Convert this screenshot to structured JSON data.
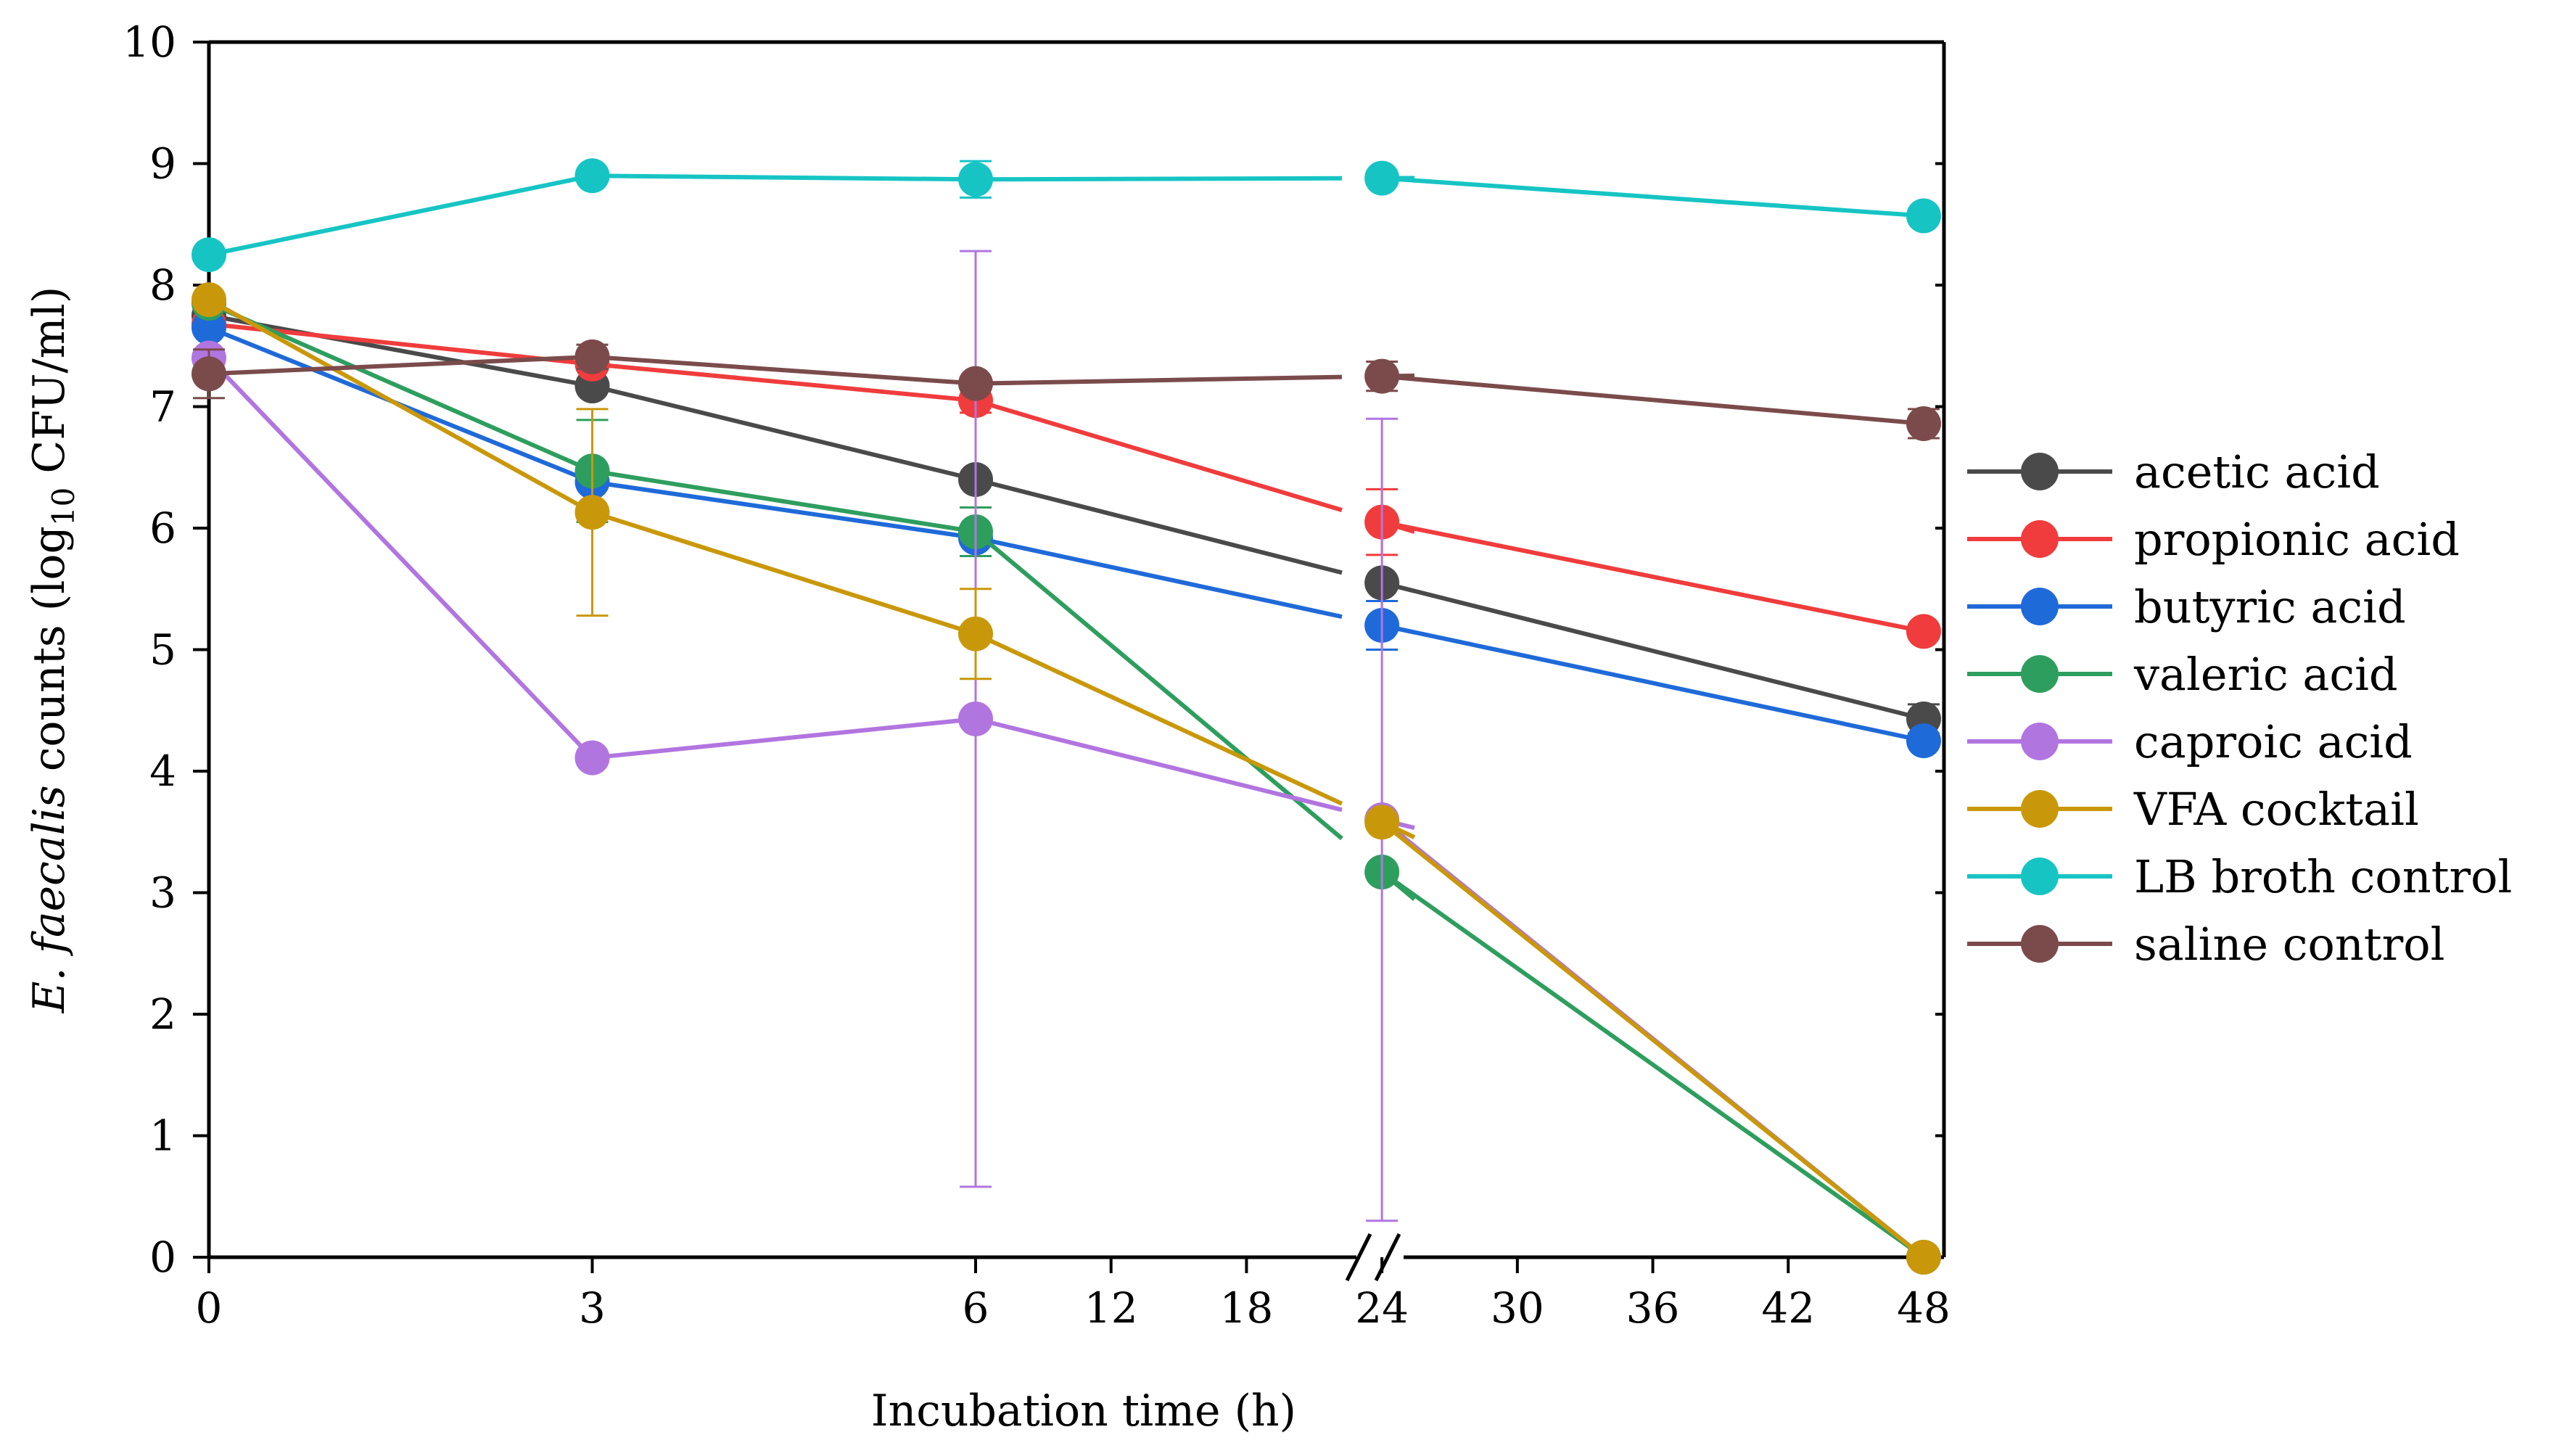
{
  "chart_data": {
    "type": "line",
    "xlabel": "Incubation time (h)",
    "ylabel": {
      "species": "E. faecalis",
      "before_sub": " counts (log",
      "sub": "10",
      "after_sub": " CFU/ml)"
    },
    "ylim": [
      0,
      10
    ],
    "yticks": [
      "0",
      "1",
      "2",
      "3",
      "4",
      "5",
      "6",
      "7",
      "8",
      "9",
      "10"
    ],
    "x_axis": {
      "broken": true,
      "segment1_ticks": [
        "0",
        "3",
        "6"
      ],
      "segment2_ticks": [
        "12",
        "18",
        "24",
        "30",
        "36",
        "42",
        "48"
      ],
      "segment2_range": [
        6,
        48
      ]
    },
    "x": [
      0,
      3,
      6,
      24,
      48
    ],
    "legend_position": "right",
    "series": [
      {
        "name": "acetic acid",
        "color": "#4a4a4a",
        "values": [
          7.75,
          7.17,
          6.4,
          5.55,
          4.43
        ],
        "errors": [
          0.05,
          0.05,
          0.05,
          0.05,
          0.12
        ]
      },
      {
        "name": "propionic acid",
        "color": "#f03c3c",
        "values": [
          7.68,
          7.35,
          7.05,
          6.05,
          5.15
        ],
        "errors": [
          0.05,
          0.05,
          0.1,
          0.27,
          0.05
        ]
      },
      {
        "name": "butyric acid",
        "color": "#1f6ad9",
        "values": [
          7.65,
          6.38,
          5.92,
          5.2,
          4.25
        ],
        "errors": [
          0.05,
          0.05,
          0.05,
          0.2,
          0.05
        ]
      },
      {
        "name": "valeric acid",
        "color": "#2e9e5e",
        "values": [
          7.85,
          6.47,
          5.97,
          3.17,
          0.0
        ],
        "errors": [
          0.05,
          0.42,
          0.2,
          0.05,
          0.0
        ]
      },
      {
        "name": "caproic acid",
        "color": "#b175e0",
        "values": [
          7.4,
          4.11,
          4.43,
          3.6,
          0.0
        ],
        "errors": [
          0.05,
          0.05,
          3.85,
          3.3,
          0.0
        ]
      },
      {
        "name": "VFA cocktail",
        "color": "#c9980a",
        "values": [
          7.88,
          6.13,
          5.13,
          3.58,
          0.0
        ],
        "errors": [
          0.05,
          0.85,
          0.37,
          0.05,
          0.0
        ]
      },
      {
        "name": "LB broth control",
        "color": "#17c4c4",
        "values": [
          8.25,
          8.9,
          8.87,
          8.88,
          8.57
        ],
        "errors": [
          0.05,
          0.05,
          0.15,
          0.05,
          0.05
        ]
      },
      {
        "name": "saline control",
        "color": "#7b4b4b",
        "values": [
          7.27,
          7.41,
          7.19,
          7.25,
          6.86
        ],
        "errors": [
          0.2,
          0.1,
          0.05,
          0.12,
          0.12
        ]
      }
    ]
  }
}
